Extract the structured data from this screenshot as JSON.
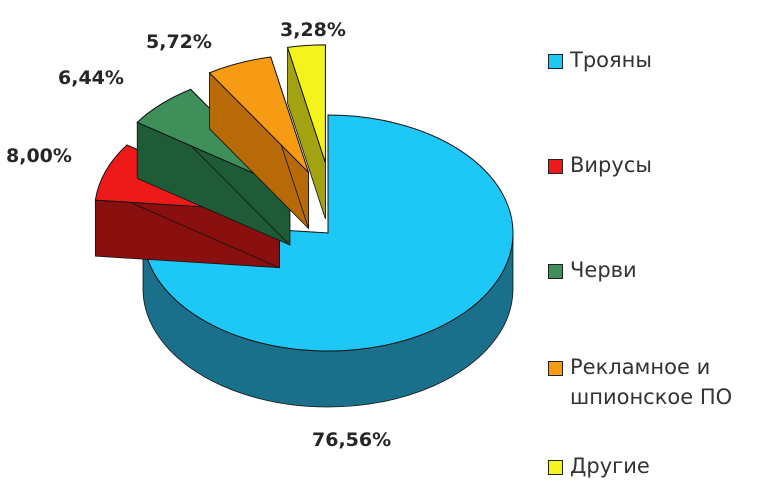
{
  "chart_data": {
    "type": "pie",
    "title": "",
    "categories": [
      "Трояны",
      "Вирусы",
      "Черви",
      "Рекламное и\nшпионское ПО",
      "Другие"
    ],
    "values": [
      76.56,
      8.0,
      6.44,
      5.72,
      3.28
    ],
    "value_labels": [
      "76,56%",
      "8,00%",
      "6,44%",
      "5,72%",
      "3,28%"
    ],
    "exploded": true,
    "three_d": true,
    "legend_position": "right",
    "colors": {
      "top": [
        "#1ec8f6",
        "#ee1a1a",
        "#3e8f5a",
        "#f79a14",
        "#f4f41c"
      ],
      "side": [
        "#1a6f8a",
        "#8a0f0f",
        "#1e5b36",
        "#b86908",
        "#a3a210"
      ]
    }
  }
}
